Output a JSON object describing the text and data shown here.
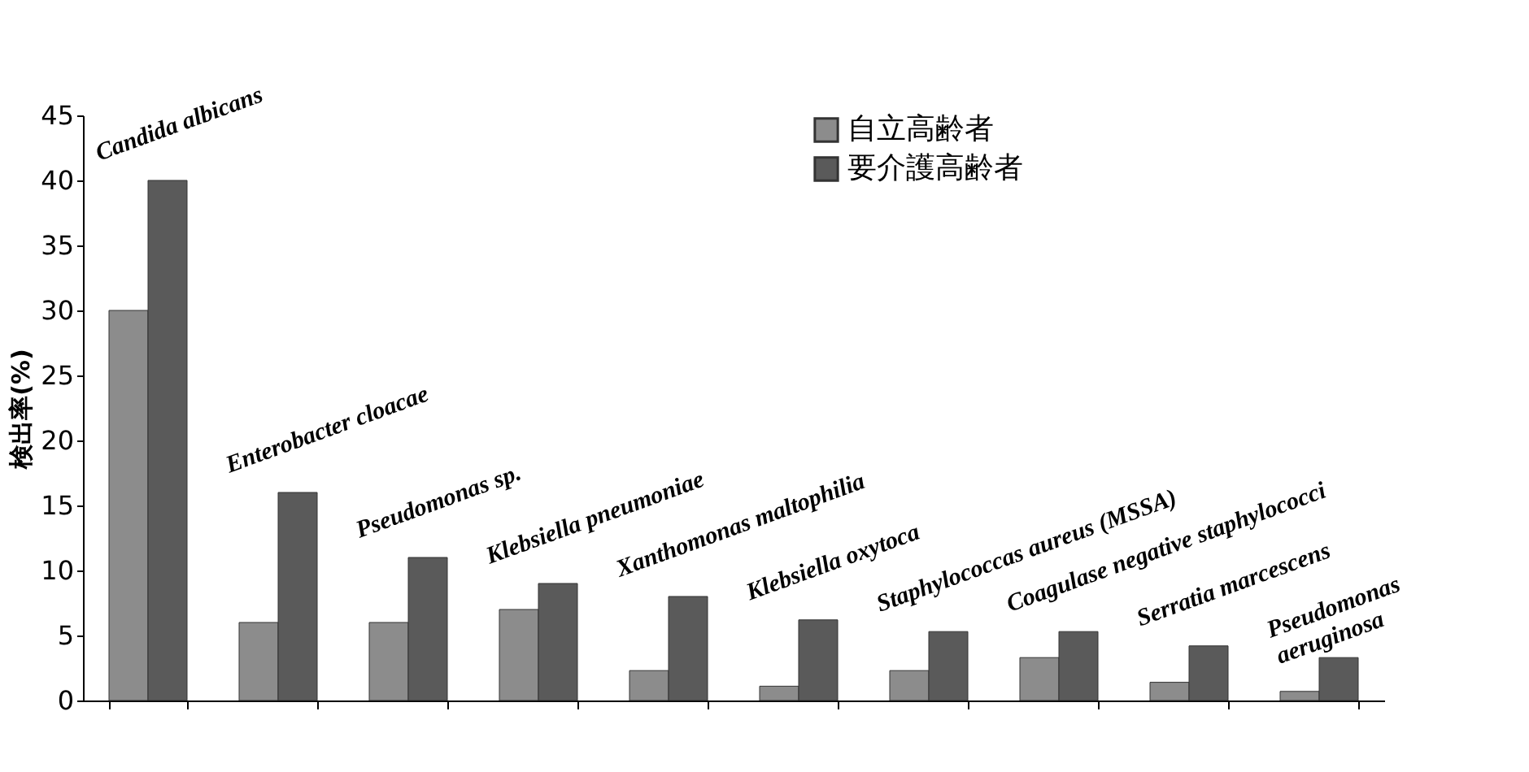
{
  "chart_data": {
    "type": "bar",
    "ylabel": "検出率(%)",
    "categories": [
      null,
      null,
      null,
      null,
      null,
      null,
      null,
      null,
      null,
      null
    ],
    "annotations": [
      "Candida albicans",
      "Enterobacter cloacae",
      "Pseudomonas sp.",
      "Klebsiella pneumoniae",
      "Xanthomonas maltophilia",
      "Klebsiella oxytoca",
      "Staphylococcas aureus (MSSA)",
      "Coagulase negative staphylococci",
      "Serratia marcescens",
      "Pseudomonas\naeruginosa"
    ],
    "series": [
      {
        "name": "自立高齢者",
        "color": "#8c8c8c",
        "values": [
          30,
          6,
          6,
          7,
          2.3,
          1.1,
          2.3,
          3.3,
          1.4,
          0.7
        ]
      },
      {
        "name": "要介護高齢者",
        "color": "#5a5a5a",
        "values": [
          40,
          16,
          11,
          9,
          8,
          6.2,
          5.3,
          5.3,
          4.2,
          3.3
        ]
      }
    ],
    "ylim": [
      0,
      45
    ],
    "yticks": [
      0,
      5,
      10,
      15,
      20,
      25,
      30,
      35,
      40,
      45
    ],
    "tick_labels": "y",
    "grid": false,
    "legend": "top right"
  }
}
